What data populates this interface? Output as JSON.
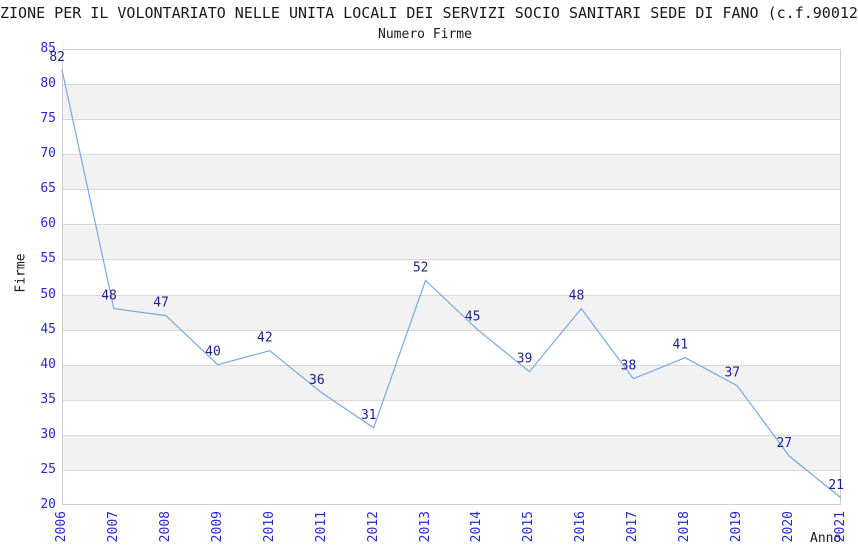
{
  "chart_data": {
    "type": "line",
    "title": "ZIONE PER IL VOLONTARIATO NELLE UNITA LOCALI DEI SERVIZI SOCIO SANITARI SEDE DI FANO (c.f.90012",
    "subtitle": "Numero Firme",
    "xlabel": "Anno",
    "ylabel": "Firme",
    "x": [
      "2006",
      "2007",
      "2008",
      "2009",
      "2010",
      "2011",
      "2012",
      "2013",
      "2014",
      "2015",
      "2016",
      "2017",
      "2018",
      "2019",
      "2020",
      "2021"
    ],
    "values": [
      82,
      48,
      47,
      40,
      42,
      36,
      31,
      52,
      45,
      39,
      48,
      38,
      41,
      37,
      27,
      21
    ],
    "ylim": [
      20,
      85
    ],
    "ytick_step": 5,
    "grid": true,
    "legend": false,
    "data_labels_shown": true,
    "colors": {
      "line": "#77aae2",
      "data_label": "#1f1f8a",
      "tick_label": "#2929cc",
      "grid_line": "#d9d9d9",
      "band_light": "#ffffff",
      "band_dark": "#f2f2f2",
      "border": "#cfcfcf",
      "text": "#1a1a1a",
      "background": "#ffffff"
    }
  }
}
